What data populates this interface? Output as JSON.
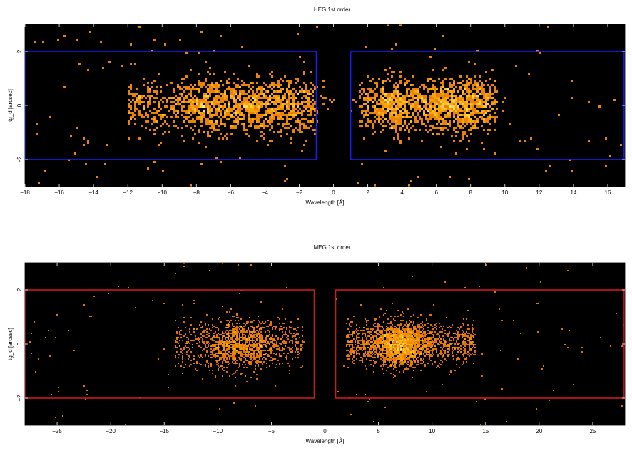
{
  "chart_data": [
    {
      "type": "heatmap",
      "title": "HEG 1st order",
      "xlabel": "Wavelength [Å]",
      "ylabel": "tg_d [arcsec]",
      "xlim": [
        -18,
        17
      ],
      "ylim": [
        -3,
        3
      ],
      "xticks": [
        -18,
        -16,
        -14,
        -12,
        -10,
        -8,
        -6,
        -4,
        -2,
        0,
        2,
        4,
        6,
        8,
        10,
        12,
        14,
        16
      ],
      "xtick_labels": [
        "−18",
        "−16",
        "−14",
        "−12",
        "−10",
        "−8",
        "−6",
        "−4",
        "−2",
        "0",
        "2",
        "4",
        "6",
        "8",
        "10",
        "12",
        "14",
        "16"
      ],
      "yticks": [
        -2,
        0,
        2
      ],
      "ytick_labels": [
        "−2",
        "0",
        "2"
      ],
      "colormap": "heat",
      "background": "#000000",
      "region_color": "#1c1cff",
      "regions": [
        {
          "x": [
            -18,
            -1
          ],
          "y": [
            -2,
            2
          ]
        },
        {
          "x": [
            1,
            17
          ],
          "y": [
            -2,
            2
          ]
        }
      ],
      "event_clusters": [
        {
          "x_range": [
            -12,
            -1
          ],
          "y_spread": 0.9,
          "peak_x": [
            -7.5,
            -5,
            -2.5
          ],
          "density": "high"
        },
        {
          "x_range": [
            1.5,
            9.5
          ],
          "y_spread": 0.9,
          "peak_x": [
            3.5,
            6.5,
            8
          ],
          "density": "high"
        }
      ]
    },
    {
      "type": "heatmap",
      "title": "MEG 1st order",
      "xlabel": "Wavelength [Å]",
      "ylabel": "tg_d [arcsec]",
      "xlim": [
        -28,
        28
      ],
      "ylim": [
        -3,
        3
      ],
      "xticks": [
        -25,
        -20,
        -15,
        -10,
        -5,
        0,
        5,
        10,
        15,
        20,
        25
      ],
      "xtick_labels": [
        "−25",
        "−20",
        "−15",
        "−10",
        "−5",
        "0",
        "5",
        "10",
        "15",
        "20",
        "25"
      ],
      "yticks": [
        -2,
        0,
        2
      ],
      "ytick_labels": [
        "−2",
        "0",
        "2"
      ],
      "colormap": "heat",
      "background": "#000000",
      "region_color": "#cc1a1a",
      "regions": [
        {
          "x": [
            -28,
            -1
          ],
          "y": [
            -2,
            2
          ]
        },
        {
          "x": [
            1,
            28
          ],
          "y": [
            -2,
            2
          ]
        }
      ],
      "event_clusters": [
        {
          "x_range": [
            -14,
            -2
          ],
          "y_spread": 0.8,
          "peak_x": [
            -9,
            -6.5
          ],
          "density": "high"
        },
        {
          "x_range": [
            2,
            14
          ],
          "y_spread": 0.7,
          "peak_x": [
            6.5,
            7.5
          ],
          "density": "very high"
        }
      ]
    }
  ]
}
